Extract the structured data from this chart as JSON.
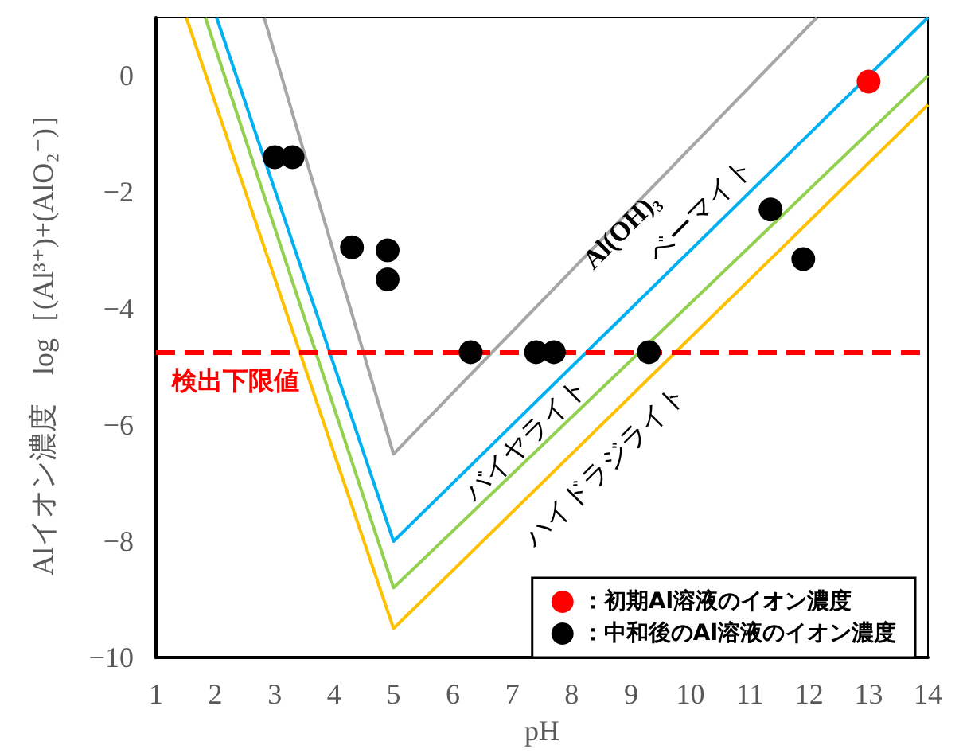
{
  "chart_data": {
    "type": "scatter",
    "xlabel": "pH",
    "ylabel": "Alイオン濃度　log［(Al³⁺)+(AlO₂⁻)］",
    "xlim": [
      1,
      14
    ],
    "xticks": [
      1,
      2,
      3,
      4,
      5,
      6,
      7,
      8,
      9,
      10,
      11,
      12,
      13,
      14
    ],
    "ylim": [
      -10,
      1
    ],
    "yticks": [
      -10,
      -8,
      -6,
      -4,
      -2,
      0
    ],
    "marker": "circle",
    "legend": "bottom right",
    "series": [
      {
        "type": "line",
        "color": "#a6a6a6",
        "marker": "none",
        "line_style": "solid",
        "x": [
          2.82,
          5,
          12.13
        ],
        "values": [
          1,
          -6.5,
          1
        ]
      },
      {
        "type": "line",
        "color": "#00b0f0",
        "marker": "none",
        "line_style": "solid",
        "x": [
          2.02,
          5,
          14
        ],
        "values": [
          1,
          -8,
          1
        ]
      },
      {
        "type": "line",
        "color": "#92d050",
        "marker": "none",
        "line_style": "solid",
        "x": [
          1.83,
          5,
          14
        ],
        "values": [
          1,
          -8.8,
          0
        ]
      },
      {
        "type": "line",
        "color": "#ffc000",
        "marker": "none",
        "line_style": "solid",
        "x": [
          1.51,
          5,
          14
        ],
        "values": [
          1,
          -9.5,
          -0.5
        ]
      },
      {
        "type": "scatter",
        "name": "：初期Al溶液のイオン濃度",
        "color": "#ff0000",
        "x": [
          13.0
        ],
        "values": [
          -0.1
        ]
      },
      {
        "type": "scatter",
        "name": "：中和後のAl溶液のイオン濃度",
        "color": "#000000",
        "x": [
          3.0,
          3.3,
          4.3,
          4.9,
          4.9,
          6.3,
          7.4,
          7.7,
          9.3,
          11.35,
          11.9
        ],
        "values": [
          -1.4,
          -1.4,
          -2.95,
          -3.0,
          -3.5,
          -4.75,
          -4.75,
          -4.75,
          -4.75,
          -2.3,
          -3.15
        ]
      }
    ],
    "ref_lines": [
      {
        "axis": "y",
        "value": -4.75,
        "label": "検出下限値",
        "color": "#ff0000",
        "line_style": "dashed"
      }
    ],
    "annotations": [
      "Al(OH)₃",
      "ベーマイト",
      "バイヤライト",
      "ハイドラジライト"
    ]
  }
}
